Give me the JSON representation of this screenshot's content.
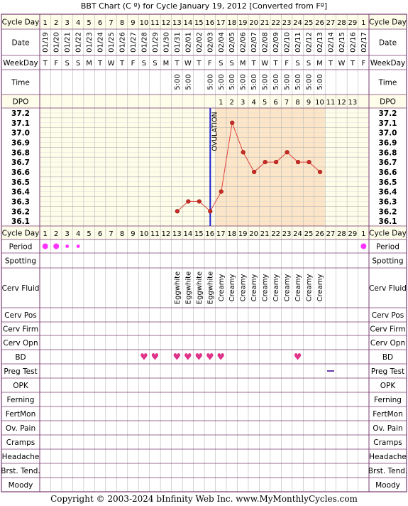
{
  "title": "BBT Chart (C º) for Cycle January 19, 2012  [Converted from Fº]",
  "footer": "Copyright © 2003-2024 bInfinity Web Inc.    www.MyMonthlyCycles.com",
  "row_labels": {
    "cycle_day": "Cycle Day",
    "date": "Date",
    "weekday": "WeekDay",
    "time": "Time",
    "dpo": "DPO",
    "period": "Period",
    "spotting": "Spotting",
    "cerv_fluid": "Cerv Fluid",
    "cerv_pos": "Cerv Pos",
    "cerv_firm": "Cerv Firm",
    "cerv_opn": "Cerv Opn",
    "bd": "BD",
    "preg_test": "Preg Test",
    "opk": "OPK",
    "ferning": "Ferning",
    "fertmon": "FertMon",
    "ov_pain": "Ov. Pain",
    "cramps": "Cramps",
    "headache": "Headache",
    "brst_tend": "Brst. Tend.",
    "moody": "Moody"
  },
  "cycle_days": [
    "1",
    "2",
    "3",
    "4",
    "5",
    "6",
    "7",
    "8",
    "9",
    "10",
    "11",
    "12",
    "13",
    "14",
    "15",
    "16",
    "17",
    "18",
    "19",
    "20",
    "21",
    "22",
    "23",
    "24",
    "25",
    "26",
    "27",
    "28",
    "29",
    "1"
  ],
  "dates": [
    "01/19",
    "01/20",
    "01/21",
    "01/22",
    "01/23",
    "01/24",
    "01/25",
    "01/26",
    "01/27",
    "01/28",
    "01/29",
    "01/30",
    "01/31",
    "02/01",
    "02/02",
    "02/03",
    "02/04",
    "02/05",
    "02/06",
    "02/07",
    "02/08",
    "02/09",
    "02/10",
    "02/11",
    "02/12",
    "02/13",
    "02/14",
    "02/15",
    "02/16",
    "02/17"
  ],
  "weekdays": [
    "T",
    "F",
    "S",
    "S",
    "M",
    "T",
    "W",
    "T",
    "F",
    "S",
    "S",
    "M",
    "T",
    "W",
    "T",
    "F",
    "S",
    "S",
    "M",
    "T",
    "W",
    "T",
    "F",
    "S",
    "S",
    "M",
    "T",
    "W",
    "T",
    "F"
  ],
  "times": [
    "",
    "",
    "",
    "",
    "",
    "",
    "",
    "",
    "",
    "",
    "",
    "",
    "5:00",
    "5:00",
    "",
    "5:00",
    "5:00",
    "5:00",
    "5:00",
    "5:00",
    "5:00",
    "5:00",
    "5:00",
    "5:00",
    "5:00",
    "5:00",
    "",
    "",
    "",
    ""
  ],
  "dpo": [
    "",
    "",
    "",
    "",
    "",
    "",
    "",
    "",
    "",
    "",
    "",
    "",
    "",
    "",
    "",
    "",
    "1",
    "2",
    "3",
    "4",
    "5",
    "6",
    "7",
    "8",
    "9",
    "10",
    "11",
    "12",
    "13",
    ""
  ],
  "temp_ticks": [
    "37.2",
    "37.1",
    "37.0",
    "36.9",
    "36.8",
    "36.7",
    "36.6",
    "36.5",
    "36.4",
    "36.3",
    "36.2",
    "36.1"
  ],
  "ovulation_label": "OVULATION",
  "period": [
    "heavy",
    "heavy",
    "light",
    "light",
    "",
    "",
    "",
    "",
    "",
    "",
    "",
    "",
    "",
    "",
    "",
    "",
    "",
    "",
    "",
    "",
    "",
    "",
    "",
    "",
    "",
    "",
    "",
    "",
    "",
    "heavy"
  ],
  "cerv_fluid": [
    "",
    "",
    "",
    "",
    "",
    "",
    "",
    "",
    "",
    "",
    "",
    "",
    "Eggwhite",
    "Eggwhite",
    "Eggwhite",
    "Eggwhite",
    "Creamy",
    "Creamy",
    "Creamy",
    "Creamy",
    "Creamy",
    "Creamy",
    "Creamy",
    "Creamy",
    "Creamy",
    "Creamy",
    "",
    "",
    "",
    ""
  ],
  "bd": [
    "",
    "",
    "",
    "",
    "",
    "",
    "",
    "",
    "",
    "♥",
    "♥",
    "",
    "♥",
    "♥",
    "♥",
    "♥",
    "♥",
    "",
    "",
    "",
    "",
    "",
    "",
    "♥",
    "",
    "",
    "",
    "",
    "",
    ""
  ],
  "preg_test": [
    "",
    "",
    "",
    "",
    "",
    "",
    "",
    "",
    "",
    "",
    "",
    "",
    "",
    "",
    "",
    "",
    "",
    "",
    "",
    "",
    "",
    "",
    "",
    "",
    "",
    "",
    "neg",
    "",
    "",
    ""
  ],
  "colors": {
    "border": "#7b3c73",
    "grid": "#b8b8b8",
    "header_bg": "#fdfdea",
    "post_ov_bg": "#fde6c8",
    "line": "#e0433a",
    "marker_fill": "#cc2a25",
    "ovulation_line": "#2222cc",
    "period_dot": "#ff33ff",
    "heart": "#e0338a",
    "preg_test": "#6a3aa8"
  },
  "chart_data": {
    "type": "line",
    "title": "BBT Chart (C º) for Cycle January 19, 2012  [Converted from Fº]",
    "xlabel": "Cycle Day",
    "ylabel": "",
    "ylim": [
      36.1,
      37.2
    ],
    "x": [
      13,
      14,
      15,
      16,
      17,
      18,
      19,
      20,
      21,
      22,
      23,
      24,
      25,
      26
    ],
    "series": [
      {
        "values": [
          36.2,
          36.3,
          36.3,
          36.2,
          36.4,
          37.1,
          36.8,
          36.6,
          36.7,
          36.7,
          36.8,
          36.7,
          36.7,
          36.6
        ]
      }
    ],
    "ovulation_day": 16,
    "grid": true
  }
}
